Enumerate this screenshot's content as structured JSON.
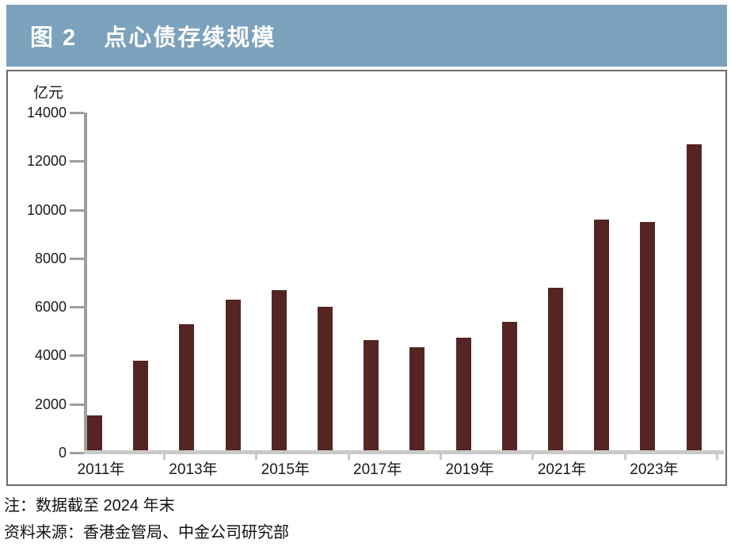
{
  "header": {
    "figure_label": "图 2",
    "title": "点心债存续规模",
    "bg_color": "#7CA2BD",
    "text_color": "#ffffff"
  },
  "chart_data": {
    "type": "bar",
    "title": "点心债存续规模",
    "unit_label": "亿元",
    "xlabel": "",
    "ylabel": "亿元",
    "ylim": [
      0,
      14000
    ],
    "y_ticks": [
      0,
      2000,
      4000,
      6000,
      8000,
      10000,
      12000,
      14000
    ],
    "categories": [
      "2011年",
      "2012年",
      "2013年",
      "2014年",
      "2015年",
      "2016年",
      "2017年",
      "2018年",
      "2019年",
      "2020年",
      "2021年",
      "2022年",
      "2023年",
      "2024年"
    ],
    "x_axis_labeled_categories": [
      "2011年",
      "2013年",
      "2015年",
      "2017年",
      "2019年",
      "2021年",
      "2023年"
    ],
    "values": [
      1450,
      3700,
      5200,
      6200,
      6600,
      5900,
      4550,
      4250,
      4650,
      5300,
      6700,
      9500,
      9400,
      12600
    ],
    "bar_color": "#542522",
    "axis_color": "#9e9e9e",
    "x_axis_color": "#c9c9c9",
    "grid": false,
    "legend_position": "none"
  },
  "footer": {
    "note": "注：数据截至 2024 年末",
    "source": "资料来源：香港金管局、中金公司研究部"
  }
}
